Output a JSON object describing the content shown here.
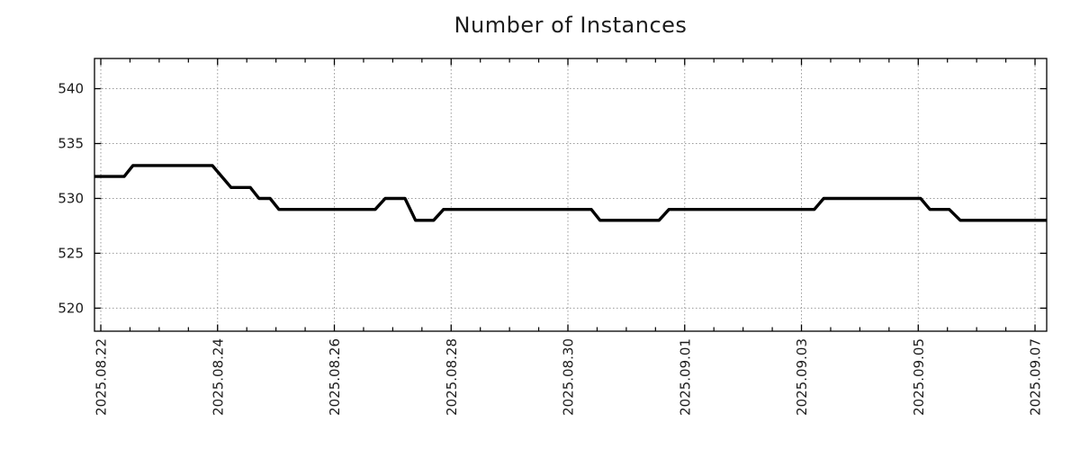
{
  "page": {
    "background": "#ffffff"
  },
  "chart_data": {
    "type": "line",
    "title": "Number of Instances",
    "x_axis": {
      "unit": "date",
      "tick_labels": [
        "2025.08.22",
        "2025.08.24",
        "2025.08.26",
        "2025.08.28",
        "2025.08.30",
        "2025.09.01",
        "2025.09.03",
        "2025.09.05",
        "2025.09.07"
      ],
      "tick_positions_days": [
        0,
        2,
        4,
        6,
        8,
        10,
        12,
        14,
        16
      ],
      "minor_tick_step_days": 0.5,
      "range_days": [
        -0.108,
        16.2
      ],
      "label_rotation_deg": -90
    },
    "y_axis": {
      "tick_labels": [
        "520",
        "525",
        "530",
        "535",
        "540"
      ],
      "tick_values": [
        520,
        525,
        530,
        535,
        540
      ],
      "range": [
        517.9,
        542.75
      ]
    },
    "series": [
      {
        "name": "instances",
        "color": "#000000",
        "line_width": 3.4,
        "points_days_value": [
          [
            -0.108,
            532
          ],
          [
            0.4,
            532
          ],
          [
            0.55,
            533
          ],
          [
            1.91,
            533
          ],
          [
            2.23,
            531
          ],
          [
            2.56,
            531
          ],
          [
            2.71,
            530
          ],
          [
            2.9,
            530
          ],
          [
            3.05,
            529
          ],
          [
            4.7,
            529
          ],
          [
            4.87,
            530
          ],
          [
            5.21,
            530
          ],
          [
            5.39,
            528
          ],
          [
            5.7,
            528
          ],
          [
            5.87,
            529
          ],
          [
            8.4,
            529
          ],
          [
            8.55,
            528
          ],
          [
            9.56,
            528
          ],
          [
            9.73,
            529
          ],
          [
            12.22,
            529
          ],
          [
            12.38,
            530
          ],
          [
            14.04,
            530
          ],
          [
            14.2,
            529
          ],
          [
            14.53,
            529
          ],
          [
            14.72,
            528
          ],
          [
            16.2,
            528
          ]
        ]
      }
    ],
    "grid": {
      "show": true,
      "style": "dotted",
      "color": "#9a9a9a"
    },
    "frame_color": "#000000",
    "text_color": "#1c1c1c",
    "tick_font_size": 15,
    "legend": null
  }
}
